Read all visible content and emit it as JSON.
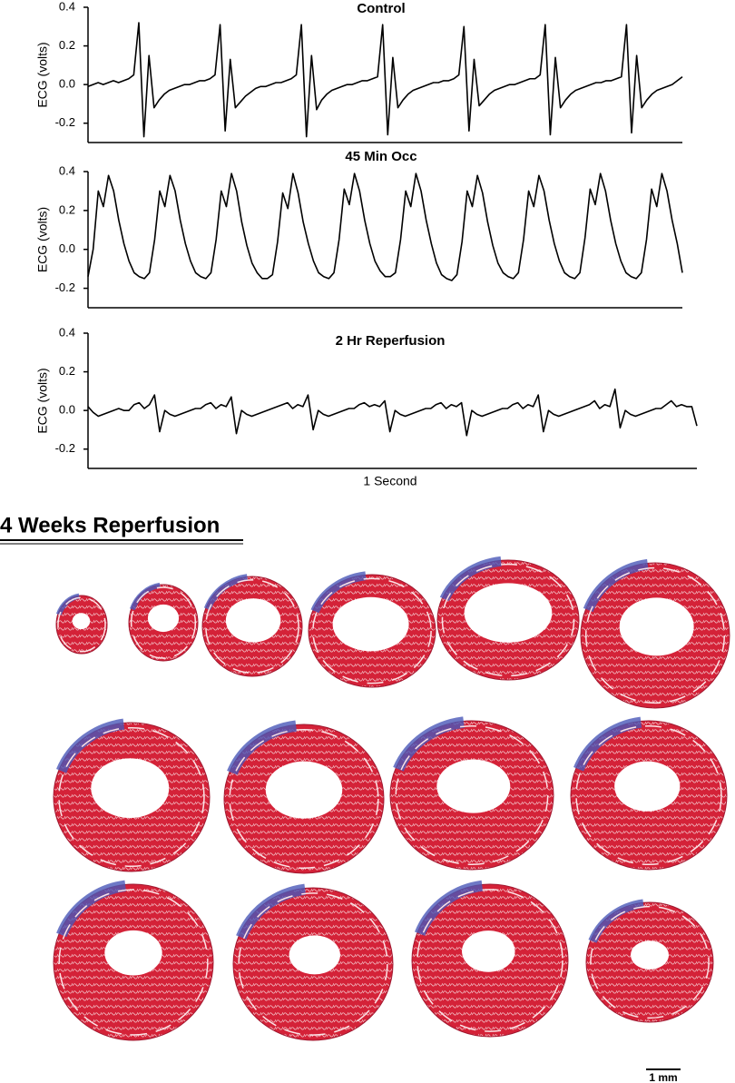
{
  "chart_data": [
    {
      "type": "line",
      "title": "Control",
      "y_label": "ECG (volts)",
      "ylim": [
        -0.3,
        0.4
      ],
      "yticks": [
        -0.2,
        {
          "value": 0,
          "label": "0.0"
        },
        0.2,
        0.4
      ],
      "values": [
        -0.01,
        0.0,
        0.01,
        0.0,
        0.01,
        0.02,
        0.01,
        0.02,
        0.03,
        0.05,
        0.32,
        -0.27,
        0.15,
        -0.12,
        -0.08,
        -0.05,
        -0.03,
        -0.02,
        -0.01,
        0.0,
        0.0,
        0.01,
        0.02,
        0.02,
        0.03,
        0.05,
        0.31,
        -0.24,
        0.13,
        -0.12,
        -0.09,
        -0.06,
        -0.04,
        -0.02,
        -0.01,
        -0.01,
        0.0,
        0.01,
        0.01,
        0.02,
        0.03,
        0.05,
        0.31,
        -0.27,
        0.15,
        -0.13,
        -0.08,
        -0.05,
        -0.03,
        -0.02,
        -0.01,
        0.0,
        0.0,
        0.01,
        0.02,
        0.02,
        0.03,
        0.04,
        0.31,
        -0.26,
        0.14,
        -0.12,
        -0.08,
        -0.05,
        -0.03,
        -0.02,
        -0.01,
        0.0,
        0.01,
        0.01,
        0.02,
        0.02,
        0.03,
        0.05,
        0.3,
        -0.24,
        0.13,
        -0.11,
        -0.08,
        -0.05,
        -0.03,
        -0.02,
        -0.01,
        0.0,
        0.0,
        0.01,
        0.02,
        0.03,
        0.03,
        0.05,
        0.31,
        -0.26,
        0.14,
        -0.12,
        -0.08,
        -0.05,
        -0.03,
        -0.02,
        -0.01,
        0.0,
        0.01,
        0.01,
        0.02,
        0.02,
        0.03,
        0.04,
        0.31,
        -0.25,
        0.15,
        -0.12,
        -0.08,
        -0.05,
        -0.03,
        -0.02,
        -0.01,
        0.0,
        0.02,
        0.04
      ]
    },
    {
      "type": "line",
      "title": "45 Min Occ",
      "y_label": "ECG (volts)",
      "ylim": [
        -0.3,
        0.4
      ],
      "yticks": [
        -0.2,
        {
          "value": 0,
          "label": "0.0"
        },
        0.2,
        0.4
      ],
      "values": [
        -0.14,
        0.0,
        0.3,
        0.22,
        0.38,
        0.3,
        0.15,
        0.03,
        -0.06,
        -0.12,
        -0.14,
        -0.15,
        -0.12,
        0.05,
        0.3,
        0.22,
        0.38,
        0.3,
        0.15,
        0.03,
        -0.06,
        -0.12,
        -0.14,
        -0.15,
        -0.12,
        0.05,
        0.3,
        0.22,
        0.39,
        0.3,
        0.14,
        0.02,
        -0.07,
        -0.12,
        -0.15,
        -0.15,
        -0.13,
        0.04,
        0.29,
        0.21,
        0.39,
        0.29,
        0.14,
        0.03,
        -0.06,
        -0.12,
        -0.14,
        -0.15,
        -0.12,
        0.05,
        0.31,
        0.23,
        0.39,
        0.3,
        0.15,
        0.03,
        -0.06,
        -0.11,
        -0.14,
        -0.14,
        -0.12,
        0.05,
        0.3,
        0.22,
        0.39,
        0.3,
        0.15,
        0.03,
        -0.07,
        -0.13,
        -0.15,
        -0.16,
        -0.13,
        0.04,
        0.3,
        0.22,
        0.38,
        0.29,
        0.14,
        0.02,
        -0.07,
        -0.12,
        -0.14,
        -0.15,
        -0.12,
        0.05,
        0.3,
        0.22,
        0.38,
        0.3,
        0.15,
        0.03,
        -0.06,
        -0.12,
        -0.14,
        -0.15,
        -0.12,
        0.06,
        0.31,
        0.23,
        0.39,
        0.3,
        0.15,
        0.03,
        -0.06,
        -0.12,
        -0.14,
        -0.15,
        -0.12,
        0.05,
        0.31,
        0.22,
        0.39,
        0.3,
        0.15,
        0.03,
        -0.12
      ]
    },
    {
      "type": "line",
      "title": "2 Hr Reperfusion",
      "y_label": "ECG (volts)",
      "x_label": "1 Second",
      "ylim": [
        -0.3,
        0.4
      ],
      "yticks": [
        -0.2,
        {
          "value": 0,
          "label": "0.0"
        },
        0.2,
        0.4
      ],
      "values": [
        0.02,
        -0.01,
        -0.03,
        -0.02,
        -0.01,
        0.0,
        0.01,
        0.0,
        0.0,
        0.03,
        0.04,
        0.01,
        0.03,
        0.08,
        -0.11,
        0.0,
        -0.02,
        -0.03,
        -0.02,
        -0.01,
        0.0,
        0.01,
        0.01,
        0.03,
        0.04,
        0.01,
        0.03,
        0.02,
        0.07,
        -0.12,
        0.0,
        -0.02,
        -0.03,
        -0.02,
        -0.01,
        0.0,
        0.01,
        0.02,
        0.03,
        0.04,
        0.01,
        0.03,
        0.02,
        0.08,
        -0.1,
        0.0,
        -0.02,
        -0.03,
        -0.02,
        -0.01,
        0.0,
        0.01,
        0.01,
        0.03,
        0.04,
        0.02,
        0.03,
        0.02,
        0.05,
        -0.11,
        0.0,
        -0.02,
        -0.03,
        -0.02,
        -0.01,
        0.0,
        0.01,
        0.01,
        0.03,
        0.04,
        0.01,
        0.03,
        0.02,
        0.04,
        -0.13,
        0.0,
        -0.02,
        -0.03,
        -0.02,
        -0.01,
        0.0,
        0.01,
        0.01,
        0.03,
        0.04,
        0.01,
        0.03,
        0.02,
        0.08,
        -0.11,
        0.0,
        -0.02,
        -0.03,
        -0.02,
        -0.01,
        0.0,
        0.01,
        0.02,
        0.03,
        0.05,
        0.01,
        0.03,
        0.02,
        0.11,
        -0.09,
        0.0,
        -0.02,
        -0.03,
        -0.02,
        -0.01,
        0.0,
        0.01,
        0.01,
        0.03,
        0.05,
        0.02,
        0.03,
        0.02,
        0.02,
        -0.08
      ]
    }
  ],
  "heading": "4 Weeks Reperfusion",
  "scale_bar_label": "1 mm"
}
